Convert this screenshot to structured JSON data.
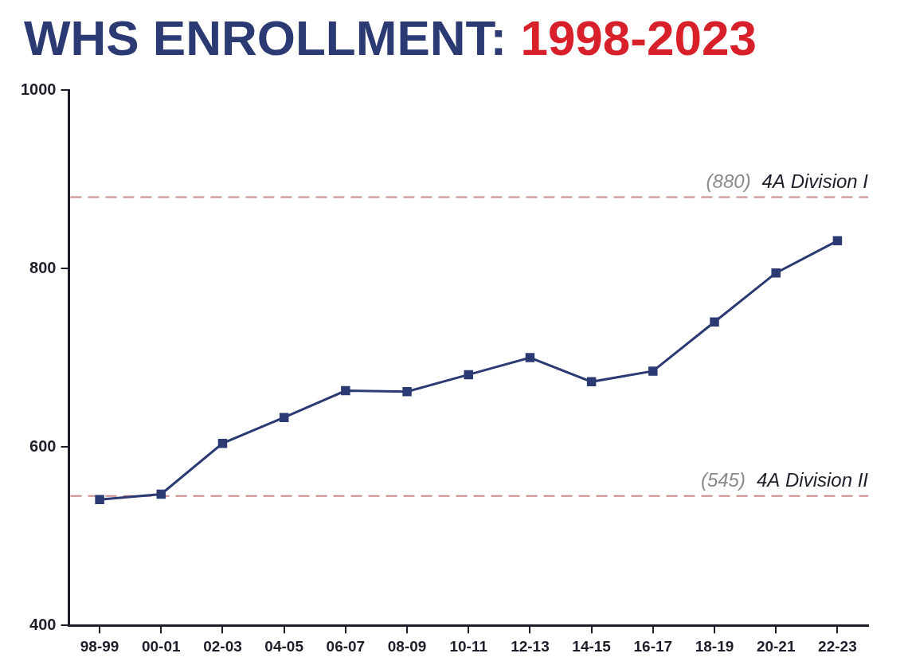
{
  "chart_data": {
    "type": "line",
    "title": "WHS ENROLLMENT: 1998-2023",
    "categories": [
      "98-99",
      "00-01",
      "02-03",
      "04-05",
      "06-07",
      "08-09",
      "10-11",
      "12-13",
      "14-15",
      "16-17",
      "18-19",
      "20-21",
      "22-23"
    ],
    "values": [
      541,
      547,
      604,
      633,
      663,
      662,
      681,
      700,
      673,
      685,
      740,
      795,
      831
    ],
    "color": "#2b3a73",
    "marker": "square",
    "line_style": "solid",
    "ylim": [
      400,
      1000
    ],
    "yticks": [
      400,
      600,
      800,
      1000
    ],
    "grid": false,
    "annotations": [
      {
        "y": 880,
        "value_label": "(880)",
        "text": "4A Division I"
      },
      {
        "y": 545,
        "value_label": "(545)",
        "text": "4A Division II"
      }
    ]
  }
}
